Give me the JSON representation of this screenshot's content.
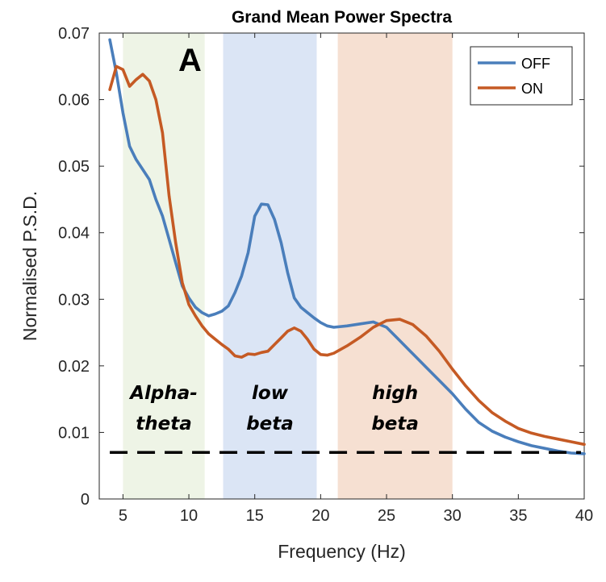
{
  "chart_data": {
    "type": "line",
    "title": "Grand Mean Power Spectra",
    "panel_label": "A",
    "xlabel": "Frequency (Hz)",
    "ylabel": "Normalised P.S.D.",
    "xlim": [
      3.2,
      40
    ],
    "ylim": [
      0,
      0.07
    ],
    "xticks": [
      5,
      10,
      15,
      20,
      25,
      30,
      35,
      40
    ],
    "xtick_labels": [
      "5",
      "10",
      "15",
      "20",
      "25",
      "30",
      "35",
      "40"
    ],
    "yticks": [
      0,
      0.01,
      0.02,
      0.03,
      0.04,
      0.05,
      0.06,
      0.07
    ],
    "ytick_labels": [
      "0",
      "0.01",
      "0.02",
      "0.03",
      "0.04",
      "0.05",
      "0.06",
      "0.07"
    ],
    "grid": false,
    "legend_position": "top-right",
    "bands": [
      {
        "lines": [
          "Alpha-",
          "theta"
        ],
        "from": 5,
        "to": 11.2,
        "color": "#eef4e6"
      },
      {
        "lines": [
          "low",
          "beta"
        ],
        "from": 12.6,
        "to": 19.7,
        "color": "#dbe5f5"
      },
      {
        "lines": [
          "high",
          "beta"
        ],
        "from": 21.3,
        "to": 30.0,
        "color": "#f6e0d2"
      }
    ],
    "reference_line": {
      "y": 0.007,
      "style": "dashed",
      "color": "#000000"
    },
    "series": [
      {
        "name": "OFF",
        "color": "#4a7ebb",
        "x": [
          4,
          4.5,
          5,
          5.5,
          6,
          6.5,
          7,
          7.5,
          8,
          8.5,
          9,
          9.5,
          10,
          10.5,
          11,
          11.5,
          12,
          12.5,
          13,
          13.5,
          14,
          14.5,
          15,
          15.5,
          16,
          16.5,
          17,
          17.5,
          18,
          18.5,
          19,
          19.5,
          20,
          20.5,
          21,
          22,
          23,
          24,
          25,
          26,
          27,
          28,
          29,
          30,
          31,
          32,
          33,
          34,
          35,
          36,
          37,
          38,
          39,
          40
        ],
        "y": [
          0.069,
          0.064,
          0.058,
          0.053,
          0.051,
          0.0495,
          0.048,
          0.045,
          0.0425,
          0.039,
          0.0355,
          0.032,
          0.0302,
          0.0288,
          0.028,
          0.0275,
          0.0278,
          0.0282,
          0.029,
          0.031,
          0.0335,
          0.037,
          0.0425,
          0.0443,
          0.0442,
          0.042,
          0.0385,
          0.034,
          0.0302,
          0.0288,
          0.028,
          0.0272,
          0.0265,
          0.026,
          0.0258,
          0.026,
          0.0263,
          0.0266,
          0.0258,
          0.0238,
          0.0218,
          0.0198,
          0.0178,
          0.0158,
          0.0135,
          0.0115,
          0.0102,
          0.0093,
          0.0086,
          0.008,
          0.0076,
          0.0072,
          0.0069,
          0.0068
        ]
      },
      {
        "name": "ON",
        "color": "#c55a24",
        "x": [
          4,
          4.5,
          5,
          5.5,
          6,
          6.5,
          7,
          7.5,
          8,
          8.5,
          9,
          9.5,
          10,
          10.5,
          11,
          11.5,
          12,
          12.5,
          13,
          13.5,
          14,
          14.5,
          15,
          15.5,
          16,
          16.5,
          17,
          17.5,
          18,
          18.5,
          19,
          19.5,
          20,
          20.5,
          21,
          22,
          23,
          24,
          25,
          26,
          27,
          28,
          29,
          30,
          31,
          32,
          33,
          34,
          35,
          36,
          37,
          38,
          39,
          40
        ],
        "y": [
          0.0615,
          0.065,
          0.0645,
          0.062,
          0.063,
          0.0638,
          0.0628,
          0.06,
          0.055,
          0.0455,
          0.0385,
          0.0325,
          0.0292,
          0.0275,
          0.026,
          0.0248,
          0.024,
          0.0232,
          0.0225,
          0.0215,
          0.0213,
          0.0218,
          0.0217,
          0.022,
          0.0222,
          0.0232,
          0.0242,
          0.0252,
          0.0257,
          0.0252,
          0.024,
          0.0225,
          0.0217,
          0.0216,
          0.0219,
          0.023,
          0.0243,
          0.0258,
          0.0268,
          0.027,
          0.0262,
          0.0245,
          0.0222,
          0.0195,
          0.017,
          0.0148,
          0.013,
          0.0117,
          0.0106,
          0.0099,
          0.0094,
          0.009,
          0.0086,
          0.0082
        ]
      }
    ]
  }
}
